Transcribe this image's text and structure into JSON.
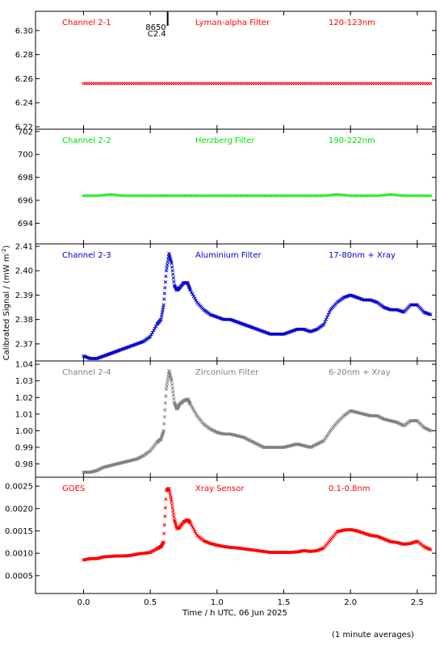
{
  "chart_data": {
    "type": "scatter",
    "marker_shape": "x",
    "xlabel": "Time / h UTC, 06 Jun 2025",
    "ylabel": "Calibrated Signal / (mW m",
    "ylabel_superscript": "-2",
    "ylabel_close": ")",
    "footnote": "(1 minute averages)",
    "xlim": [
      -0.36,
      2.64
    ],
    "xticks": [
      0.0,
      0.5,
      1.0,
      1.5,
      2.0,
      2.5
    ],
    "xtick_labels": [
      "0.0",
      "0.5",
      "1.0",
      "1.5",
      "2.0",
      "2.5"
    ],
    "marker_line": {
      "x": 0.63,
      "label_top": "8650",
      "label_bottom": "C2.4"
    },
    "panels": [
      {
        "channel": "Channel 2-1",
        "filter": "Lyman-alpha Filter",
        "band": "120-123nm",
        "color": "#ff0000",
        "ylim": [
          6.218,
          6.316
        ],
        "yticks": [
          6.22,
          6.24,
          6.26,
          6.28,
          6.3
        ],
        "ytick_labels": [
          "6.22",
          "6.24",
          "6.26",
          "6.28",
          "6.30"
        ],
        "x": [
          0.0,
          0.1,
          0.2,
          0.3,
          0.4,
          0.5,
          0.6,
          0.7,
          0.8,
          0.9,
          1.0,
          1.1,
          1.2,
          1.3,
          1.4,
          1.5,
          1.6,
          1.7,
          1.8,
          1.9,
          2.0,
          2.1,
          2.2,
          2.3,
          2.4,
          2.5,
          2.6
        ],
        "y": [
          6.256,
          6.256,
          6.256,
          6.256,
          6.256,
          6.256,
          6.256,
          6.256,
          6.256,
          6.256,
          6.256,
          6.256,
          6.256,
          6.256,
          6.256,
          6.256,
          6.256,
          6.256,
          6.256,
          6.256,
          6.256,
          6.256,
          6.256,
          6.256,
          6.256,
          6.256,
          6.256
        ]
      },
      {
        "channel": "Channel 2-2",
        "filter": "Herzberg Filter",
        "band": "190-222nm",
        "color": "#00e000",
        "ylim": [
          692.2,
          702.2
        ],
        "yticks": [
          694,
          696,
          698,
          700,
          702
        ],
        "ytick_labels": [
          "694",
          "696",
          "698",
          "700",
          "702"
        ],
        "x": [
          0.0,
          0.1,
          0.2,
          0.3,
          0.4,
          0.5,
          0.6,
          0.7,
          0.8,
          0.9,
          1.0,
          1.1,
          1.2,
          1.3,
          1.4,
          1.5,
          1.6,
          1.7,
          1.8,
          1.9,
          2.0,
          2.1,
          2.2,
          2.3,
          2.4,
          2.5,
          2.6
        ],
        "y": [
          696.4,
          696.4,
          696.5,
          696.4,
          696.4,
          696.4,
          696.4,
          696.4,
          696.4,
          696.4,
          696.4,
          696.4,
          696.4,
          696.4,
          696.4,
          696.4,
          696.4,
          696.4,
          696.4,
          696.5,
          696.4,
          696.4,
          696.4,
          696.5,
          696.4,
          696.4,
          696.4
        ]
      },
      {
        "channel": "Channel 2-3",
        "filter": "Aluminium Filter",
        "band": "17-80nm + Xray",
        "color": "#0000cc",
        "ylim": [
          2.363,
          2.411
        ],
        "yticks": [
          2.37,
          2.38,
          2.39,
          2.4,
          2.41
        ],
        "ytick_labels": [
          "2.37",
          "2.38",
          "2.39",
          "2.40",
          "2.41"
        ],
        "x": [
          0.0,
          0.05,
          0.1,
          0.15,
          0.2,
          0.25,
          0.3,
          0.35,
          0.4,
          0.45,
          0.5,
          0.55,
          0.58,
          0.6,
          0.62,
          0.64,
          0.66,
          0.68,
          0.7,
          0.72,
          0.75,
          0.78,
          0.8,
          0.85,
          0.9,
          0.95,
          1.0,
          1.05,
          1.1,
          1.15,
          1.2,
          1.25,
          1.3,
          1.35,
          1.4,
          1.45,
          1.5,
          1.55,
          1.6,
          1.65,
          1.7,
          1.75,
          1.8,
          1.85,
          1.9,
          1.95,
          2.0,
          2.05,
          2.1,
          2.15,
          2.2,
          2.25,
          2.3,
          2.35,
          2.4,
          2.45,
          2.5,
          2.55,
          2.6
        ],
        "y": [
          2.365,
          2.364,
          2.364,
          2.365,
          2.366,
          2.367,
          2.368,
          2.369,
          2.37,
          2.371,
          2.373,
          2.378,
          2.38,
          2.386,
          2.4,
          2.407,
          2.403,
          2.394,
          2.392,
          2.393,
          2.395,
          2.395,
          2.392,
          2.387,
          2.384,
          2.382,
          2.381,
          2.38,
          2.38,
          2.379,
          2.378,
          2.377,
          2.376,
          2.375,
          2.374,
          2.374,
          2.374,
          2.375,
          2.376,
          2.376,
          2.375,
          2.376,
          2.378,
          2.384,
          2.387,
          2.389,
          2.39,
          2.389,
          2.388,
          2.388,
          2.387,
          2.385,
          2.384,
          2.384,
          2.383,
          2.386,
          2.386,
          2.383,
          2.382
        ]
      },
      {
        "channel": "Channel 2-4",
        "filter": "Zirconium Filter",
        "band": "6-20nm + Xray",
        "color": "#808080",
        "ylim": [
          0.972,
          1.042
        ],
        "yticks": [
          0.98,
          0.99,
          1.0,
          1.01,
          1.02,
          1.03,
          1.04
        ],
        "ytick_labels": [
          "0.98",
          "0.99",
          "1.00",
          "1.01",
          "1.02",
          "1.03",
          "1.04"
        ],
        "x": [
          0.0,
          0.05,
          0.1,
          0.15,
          0.2,
          0.25,
          0.3,
          0.35,
          0.4,
          0.45,
          0.5,
          0.55,
          0.58,
          0.6,
          0.62,
          0.64,
          0.66,
          0.68,
          0.7,
          0.72,
          0.75,
          0.78,
          0.8,
          0.85,
          0.9,
          0.95,
          1.0,
          1.05,
          1.1,
          1.15,
          1.2,
          1.25,
          1.3,
          1.35,
          1.4,
          1.45,
          1.5,
          1.55,
          1.6,
          1.65,
          1.7,
          1.75,
          1.8,
          1.85,
          1.9,
          1.95,
          2.0,
          2.05,
          2.1,
          2.15,
          2.2,
          2.25,
          2.3,
          2.35,
          2.4,
          2.45,
          2.5,
          2.55,
          2.6
        ],
        "y": [
          0.975,
          0.975,
          0.976,
          0.978,
          0.979,
          0.98,
          0.981,
          0.982,
          0.983,
          0.985,
          0.988,
          0.993,
          0.995,
          1.0,
          1.025,
          1.036,
          1.03,
          1.017,
          1.013,
          1.016,
          1.018,
          1.019,
          1.016,
          1.009,
          1.004,
          1.001,
          0.999,
          0.998,
          0.998,
          0.997,
          0.996,
          0.994,
          0.992,
          0.99,
          0.99,
          0.99,
          0.99,
          0.991,
          0.992,
          0.991,
          0.99,
          0.992,
          0.994,
          1.0,
          1.005,
          1.009,
          1.012,
          1.011,
          1.01,
          1.009,
          1.009,
          1.007,
          1.006,
          1.005,
          1.003,
          1.006,
          1.006,
          1.002,
          1.0
        ]
      },
      {
        "channel": "GOES",
        "filter": "Xray Sensor",
        "band": "0.1-0.8nm",
        "color": "#ff0000",
        "ylim": [
          0.0001,
          0.0027
        ],
        "yticks": [
          0.0005,
          0.001,
          0.0015,
          0.002,
          0.0025
        ],
        "ytick_labels": [
          "0.0005",
          "0.0010",
          "0.0015",
          "0.0020",
          "0.0025"
        ],
        "x": [
          0.0,
          0.05,
          0.1,
          0.15,
          0.2,
          0.25,
          0.3,
          0.35,
          0.4,
          0.45,
          0.5,
          0.55,
          0.58,
          0.6,
          0.62,
          0.64,
          0.66,
          0.68,
          0.7,
          0.72,
          0.75,
          0.78,
          0.8,
          0.85,
          0.9,
          0.95,
          1.0,
          1.05,
          1.1,
          1.15,
          1.2,
          1.25,
          1.3,
          1.35,
          1.4,
          1.45,
          1.5,
          1.55,
          1.6,
          1.65,
          1.7,
          1.75,
          1.8,
          1.85,
          1.9,
          1.95,
          2.0,
          2.05,
          2.1,
          2.15,
          2.2,
          2.25,
          2.3,
          2.35,
          2.4,
          2.45,
          2.5,
          2.55,
          2.6
        ],
        "y": [
          0.00085,
          0.00088,
          0.00088,
          0.00092,
          0.00093,
          0.00094,
          0.00094,
          0.00095,
          0.00098,
          0.001,
          0.00102,
          0.0011,
          0.00115,
          0.00125,
          0.0024,
          0.00245,
          0.00215,
          0.00175,
          0.00155,
          0.00158,
          0.0017,
          0.00175,
          0.00168,
          0.0014,
          0.00128,
          0.00122,
          0.00118,
          0.00115,
          0.00113,
          0.00112,
          0.0011,
          0.00108,
          0.00106,
          0.00104,
          0.00102,
          0.00102,
          0.00102,
          0.00102,
          0.00103,
          0.00106,
          0.00104,
          0.00106,
          0.00112,
          0.0013,
          0.00148,
          0.00152,
          0.00153,
          0.0015,
          0.00145,
          0.0014,
          0.00138,
          0.00132,
          0.00126,
          0.00124,
          0.0012,
          0.00122,
          0.00127,
          0.00115,
          0.00108
        ]
      }
    ]
  }
}
